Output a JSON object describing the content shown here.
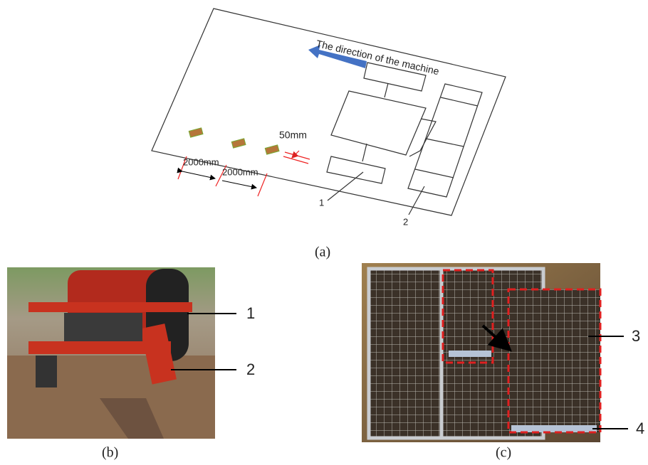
{
  "figure": {
    "panel_a": {
      "label": "(a)",
      "direction_text": "The direction of the machine",
      "spacing_text": "50mm",
      "distance_texts": [
        "2000mm",
        "2000mm"
      ],
      "callouts": [
        "1",
        "2"
      ]
    },
    "panel_b": {
      "label": "(b)",
      "callouts": [
        "1",
        "2"
      ]
    },
    "panel_c": {
      "label": "(c)",
      "callouts": [
        "3",
        "4"
      ]
    }
  }
}
